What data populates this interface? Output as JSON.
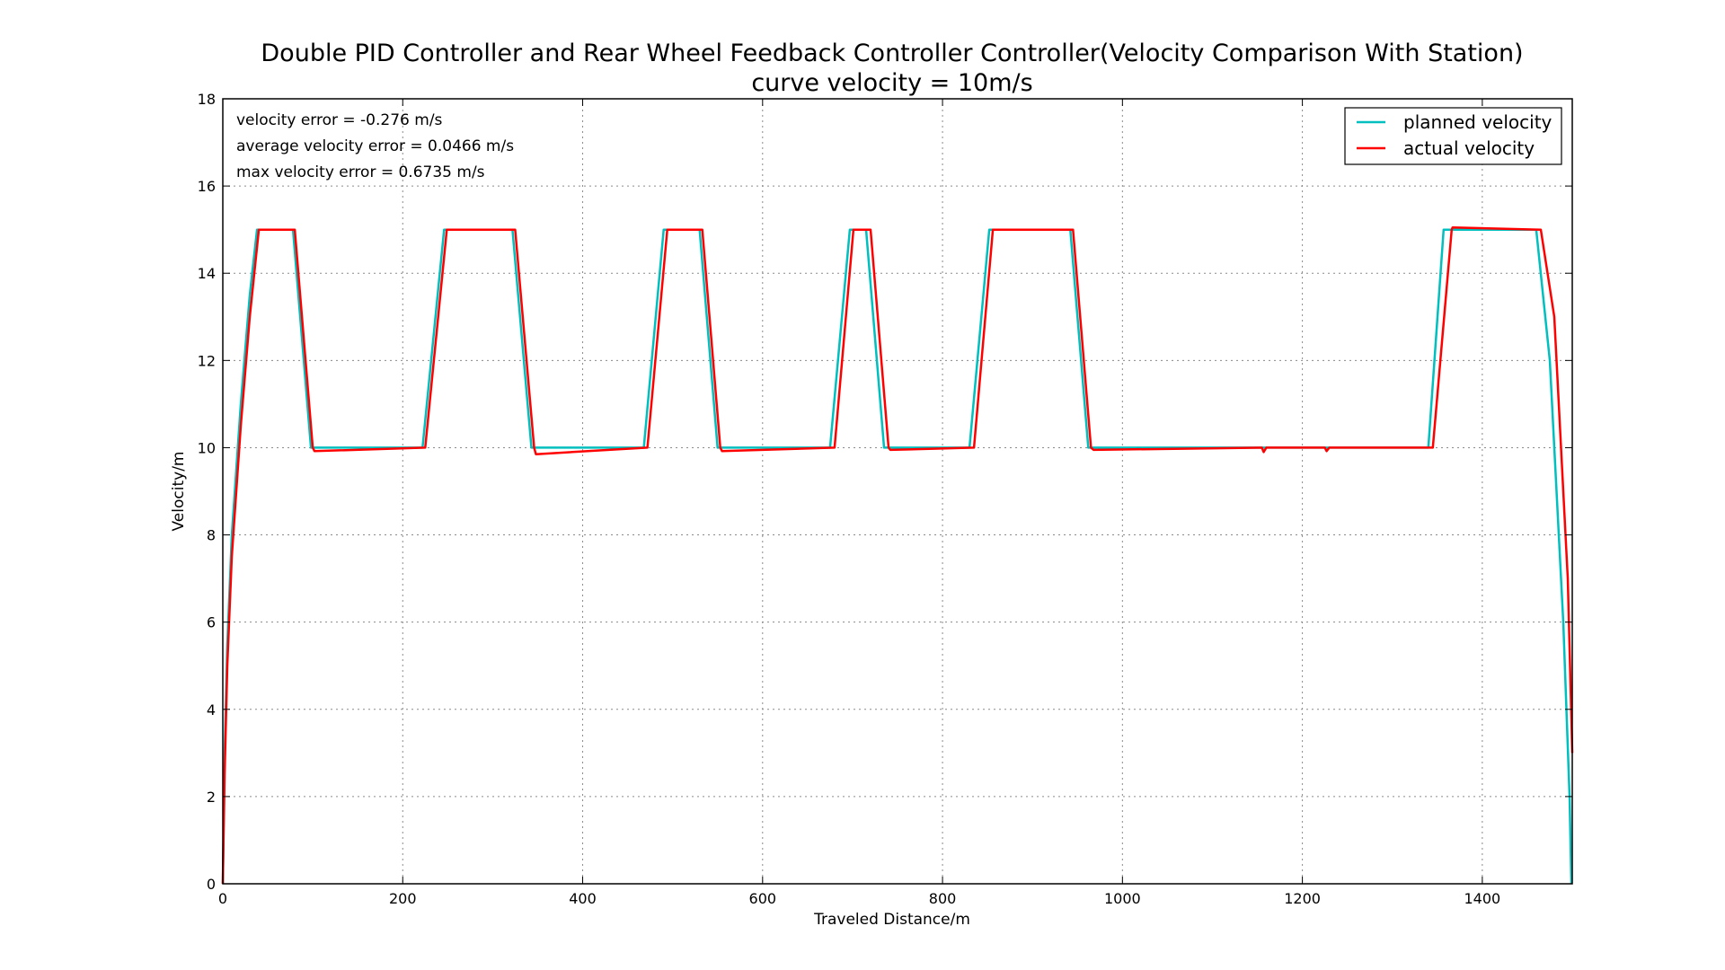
{
  "chart_data": {
    "type": "line",
    "title": "Double PID Controller and Rear Wheel Feedback Controller Controller(Velocity Comparison With Station)",
    "subtitle": "curve velocity = 10m/s",
    "xlabel": "Traveled Distance/m",
    "ylabel": "Velocity/m",
    "xlim": [
      0,
      1500
    ],
    "ylim": [
      0,
      18
    ],
    "xticks": [
      0,
      200,
      400,
      600,
      800,
      1000,
      1200,
      1400
    ],
    "yticks": [
      0,
      2,
      4,
      6,
      8,
      10,
      12,
      14,
      16,
      18
    ],
    "grid": true,
    "legend_position": "top-right",
    "annotations": [
      "velocity error = -0.276 m/s",
      "average velocity error = 0.0466 m/s",
      "max velocity error = 0.6735 m/s"
    ],
    "series": [
      {
        "name": "planned velocity",
        "color": "#00bfbf",
        "x": [
          0,
          2,
          5,
          10,
          20,
          30,
          38,
          78,
          98,
          222,
          246,
          322,
          343,
          468,
          490,
          530,
          550,
          675,
          697,
          715,
          735,
          830,
          852,
          942,
          962,
          1340,
          1357,
          1460,
          1475,
          1490,
          1497,
          1499
        ],
        "y": [
          0,
          3,
          5.5,
          8,
          11,
          13.5,
          15,
          15,
          10,
          10,
          15,
          15,
          10,
          10,
          15,
          15,
          10,
          10,
          15,
          15,
          10,
          10,
          15,
          15,
          10,
          10,
          15,
          15,
          12,
          6,
          2,
          0
        ]
      },
      {
        "name": "actual velocity",
        "color": "#ff0000",
        "x": [
          0,
          2,
          5,
          10,
          20,
          30,
          40,
          80,
          100,
          102,
          225,
          249,
          325,
          346,
          348,
          472,
          494,
          533,
          553,
          555,
          680,
          701,
          720,
          740,
          742,
          835,
          856,
          945,
          965,
          968,
          1155,
          1157,
          1160,
          1225,
          1227,
          1230,
          1345,
          1366,
          1367,
          1465,
          1480,
          1495,
          1500
        ],
        "y": [
          0,
          2.5,
          5,
          7.5,
          10.5,
          13,
          15,
          15,
          10,
          9.92,
          10,
          15,
          15,
          10,
          9.85,
          10,
          15,
          15,
          10,
          9.92,
          10,
          15,
          15,
          10,
          9.95,
          10,
          15,
          15,
          10,
          9.95,
          10,
          9.9,
          10,
          10,
          9.92,
          10,
          10,
          15,
          15.05,
          15,
          13,
          7,
          3
        ]
      }
    ]
  }
}
